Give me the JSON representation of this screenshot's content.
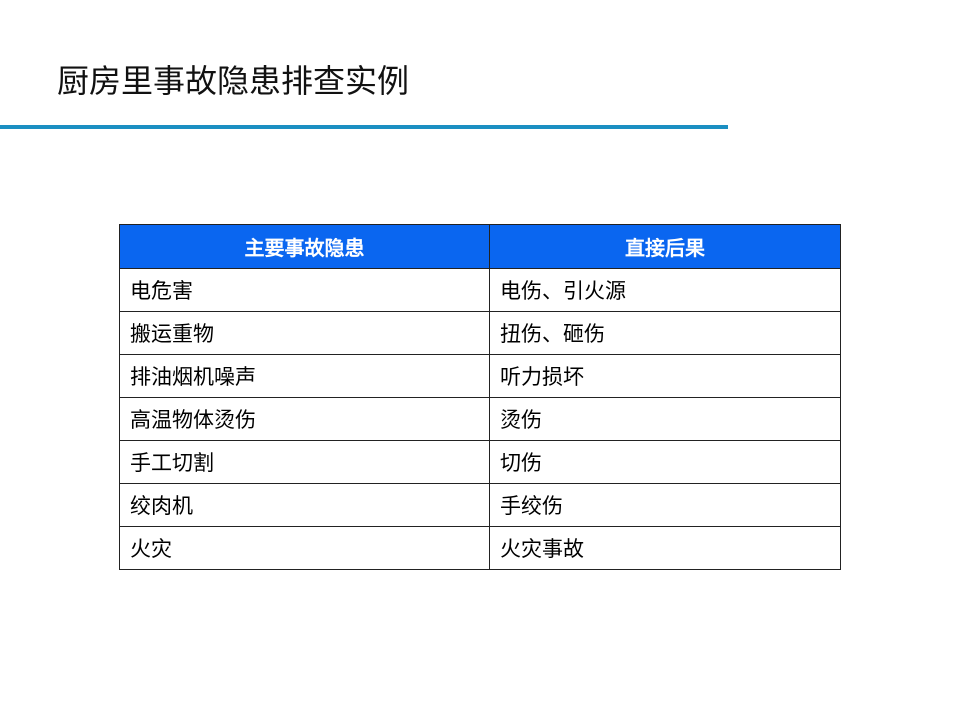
{
  "title": "厨房里事故隐患排查实例",
  "accent_color": "#1b8fc2",
  "header_color": "#0a66f0",
  "table": {
    "headers": [
      "主要事故隐患",
      "直接后果"
    ],
    "rows": [
      [
        "电危害",
        "电伤、引火源"
      ],
      [
        "搬运重物",
        "扭伤、砸伤"
      ],
      [
        "排油烟机噪声",
        "听力损坏"
      ],
      [
        "高温物体烫伤",
        "烫伤"
      ],
      [
        "手工切割",
        "切伤"
      ],
      [
        "绞肉机",
        "手绞伤"
      ],
      [
        "火灾",
        "火灾事故"
      ]
    ]
  }
}
